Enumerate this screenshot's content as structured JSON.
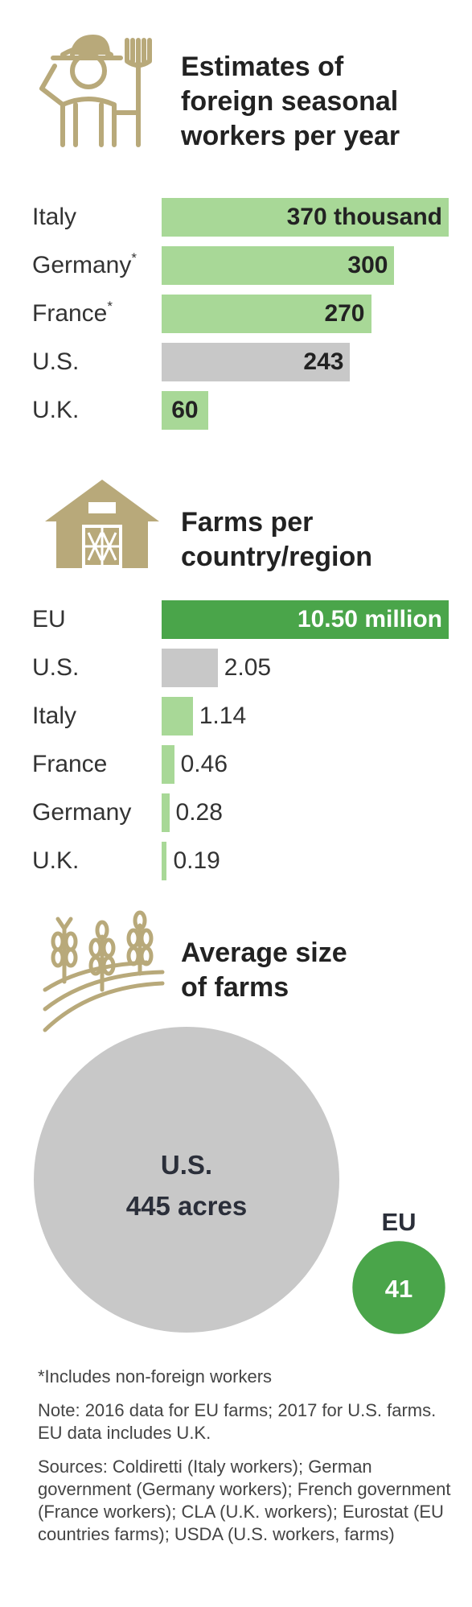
{
  "colors": {
    "light_green": "#a8d897",
    "dark_green": "#4aa54a",
    "gray": "#c8c8c8",
    "icon_tan": "#b8a97a"
  },
  "chart_data": [
    {
      "type": "bar",
      "title": "Estimates of foreign seasonal workers per year",
      "categories": [
        "Italy",
        "Germany",
        "France",
        "U.S.",
        "U.K."
      ],
      "values": [
        370,
        300,
        270,
        243,
        60
      ],
      "unit": "thousand",
      "value_labels": [
        "370 thousand",
        "300",
        "270",
        "243",
        "60"
      ],
      "footnote_marked": [
        "Germany",
        "France"
      ],
      "highlight": {
        "U.S.": "gray"
      }
    },
    {
      "type": "bar",
      "title": "Farms per country/region",
      "categories": [
        "EU",
        "U.S.",
        "Italy",
        "France",
        "Germany",
        "U.K."
      ],
      "values": [
        10.5,
        2.05,
        1.14,
        0.46,
        0.28,
        0.19
      ],
      "unit": "million",
      "value_labels": [
        "10.50 million",
        "2.05",
        "1.14",
        "0.46",
        "0.28",
        "0.19"
      ],
      "highlight": {
        "EU": "dark_green",
        "U.S.": "gray"
      }
    },
    {
      "type": "bubble",
      "title": "Average size of farms",
      "categories": [
        "U.S.",
        "EU"
      ],
      "values": [
        445,
        41
      ],
      "unit": "acres",
      "value_labels": [
        "445 acres",
        "41"
      ]
    }
  ],
  "section1": {
    "title_lines": [
      "Estimates of",
      "foreign seasonal",
      "workers per year"
    ],
    "star": "*"
  },
  "section2": {
    "title_lines": [
      "Farms per",
      "country/region"
    ]
  },
  "section3": {
    "title_lines": [
      "Average size",
      "of farms"
    ],
    "us_label": "U.S.",
    "us_value": "445 acres",
    "eu_label": "EU",
    "eu_value": "41"
  },
  "notes": {
    "footnote": "*Includes non-foreign workers",
    "note": "Note: 2016 data for EU farms; 2017 for U.S. farms. EU data includes U.K.",
    "sources": "Sources: Coldiretti (Italy workers); German government (Germany workers); French government (France workers); CLA (U.K. workers); Eurostat (EU countries farms); USDA (U.S. workers, farms)"
  }
}
